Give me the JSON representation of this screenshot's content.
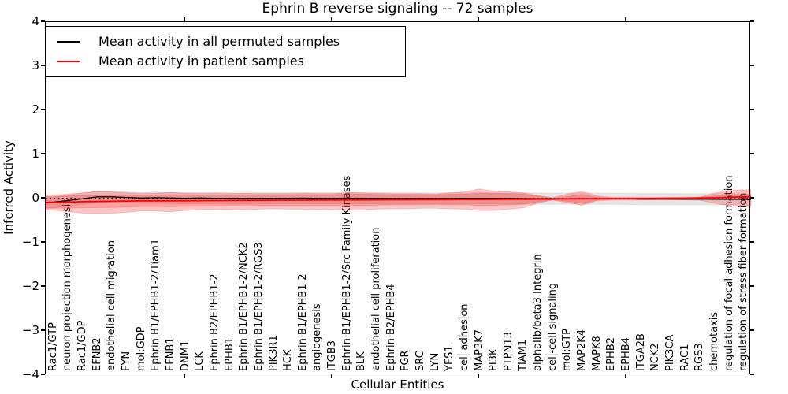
{
  "legend": {
    "position": "upper left",
    "items": [
      {
        "label": "Mean activity in all permuted samples",
        "color": "#000000"
      },
      {
        "label": "Mean activity in patient samples",
        "color": "#ff0000"
      }
    ]
  },
  "chart_data": {
    "type": "line",
    "title": "Ephrin B reverse signaling -- 72 samples",
    "xlabel": "Cellular Entities",
    "ylabel": "Inferred Activity",
    "ylim": [
      -4,
      4
    ],
    "grid": false,
    "ytick_values": [
      4,
      3,
      2,
      1,
      0,
      -1,
      -2,
      -3,
      -4
    ],
    "ytick_labels": [
      "4",
      "3",
      "2",
      "1",
      "0",
      "−1",
      "−2",
      "−3",
      "−4"
    ],
    "xtick_positions": [
      10,
      20,
      30,
      40
    ],
    "categories": [
      "Rac1/GTP",
      "neuron projection morphogenesis",
      "Rac1/GDP",
      "EFNB2",
      "endothelial cell migration",
      "FYN",
      "mol:GDP",
      "Ephrin B1/EPHB1-2/Tiam1",
      "EFNB1",
      "DNM1",
      "LCK",
      "Ephrin B2/EPHB1-2",
      "EPHB1",
      "Ephrin B1/EPHB1-2/NCK2",
      "Ephrin B1/EPHB1-2/RGS3",
      "PIK3R1",
      "HCK",
      "Ephrin B1/EPHB1-2",
      "angiogenesis",
      "ITGB3",
      "Ephrin B1/EPHB1-2/Src Family Kinases",
      "BLK",
      "endothelial cell proliferation",
      "Ephrin B2/EPHB4",
      "FGR",
      "SRC",
      "LYN",
      "YES1",
      "cell adhesion",
      "MAP3K7",
      "PI3K",
      "PTPN13",
      "TIAM1",
      "alphaIIb/beta3 Integrin",
      "cell-cell signaling",
      "mol:GTP",
      "MAP2K4",
      "MAPK8",
      "EPHB2",
      "EPHB4",
      "ITGA2B",
      "NCK2",
      "PIK3CA",
      "RAC1",
      "RGS3",
      "chemotaxis",
      "regulation of focal adhesion formation",
      "regulation of stress fiber formation"
    ],
    "zero_reference": {
      "value": 0,
      "style": "dotted",
      "color": "#000000"
    },
    "series": [
      {
        "name": "Mean activity in all permuted samples",
        "color": "#000000",
        "values": [
          -0.08,
          -0.045,
          -0.005,
          0.04,
          0.04,
          0.025,
          0.012,
          0.02,
          0.012,
          0.006,
          0.012,
          0.008,
          0.006,
          0.006,
          0.005,
          0.004,
          0.005,
          0.009,
          0.005,
          0.004,
          0.009,
          0.005,
          0.004,
          0.002,
          0.001,
          0.002,
          0.001,
          0.002,
          0.003,
          0.004,
          0.003,
          0.002,
          0.0,
          -0.002,
          -0.003,
          -0.002,
          0.0,
          -0.003,
          -0.006,
          -0.008,
          -0.01,
          -0.01,
          -0.011,
          -0.012,
          -0.012,
          -0.014,
          -0.016,
          -0.02
        ]
      },
      {
        "name": "Mean activity in patient samples",
        "color": "#ff0000",
        "values": [
          -0.09,
          -0.08,
          -0.07,
          -0.065,
          -0.06,
          -0.055,
          -0.05,
          -0.05,
          -0.05,
          -0.048,
          -0.046,
          -0.044,
          -0.042,
          -0.04,
          -0.04,
          -0.038,
          -0.036,
          -0.035,
          -0.033,
          -0.032,
          -0.03,
          -0.03,
          -0.028,
          -0.027,
          -0.026,
          -0.024,
          -0.023,
          -0.022,
          -0.02,
          -0.02,
          -0.018,
          -0.016,
          -0.014,
          -0.012,
          -0.01,
          -0.008,
          -0.005,
          -0.004,
          -0.003,
          -0.002,
          0.0,
          0.002,
          0.005,
          0.008,
          0.012,
          0.018,
          0.028,
          0.04
        ]
      }
    ],
    "bands": [
      {
        "name": "permuted-samples-band",
        "color": "#888888",
        "opacity": 0.2,
        "upper": [
          0.045,
          0.08,
          0.12,
          0.165,
          0.165,
          0.15,
          0.137,
          0.145,
          0.137,
          0.131,
          0.137,
          0.133,
          0.131,
          0.131,
          0.13,
          0.129,
          0.13,
          0.134,
          0.13,
          0.129,
          0.134,
          0.13,
          0.129,
          0.127,
          0.126,
          0.127,
          0.126,
          0.127,
          0.128,
          0.129,
          0.128,
          0.127,
          0.125,
          0.123,
          0.122,
          0.123,
          0.125,
          0.122,
          0.119,
          0.117,
          0.115,
          0.115,
          0.114,
          0.113,
          0.113,
          0.111,
          0.109,
          0.105
        ],
        "lower": [
          -0.205,
          -0.17,
          -0.13,
          -0.085,
          -0.085,
          -0.1,
          -0.113,
          -0.105,
          -0.113,
          -0.119,
          -0.113,
          -0.117,
          -0.119,
          -0.119,
          -0.12,
          -0.121,
          -0.12,
          -0.116,
          -0.12,
          -0.121,
          -0.116,
          -0.12,
          -0.121,
          -0.123,
          -0.124,
          -0.123,
          -0.124,
          -0.123,
          -0.122,
          -0.121,
          -0.122,
          -0.123,
          -0.125,
          -0.127,
          -0.128,
          -0.127,
          -0.125,
          -0.128,
          -0.131,
          -0.133,
          -0.135,
          -0.135,
          -0.136,
          -0.137,
          -0.137,
          -0.139,
          -0.141,
          -0.145
        ]
      },
      {
        "name": "patient-samples-outer-band",
        "color": "#ff0000",
        "opacity": 0.22,
        "upper": [
          0.08,
          0.1,
          0.13,
          0.16,
          0.15,
          0.13,
          0.11,
          0.12,
          0.14,
          0.12,
          0.11,
          0.12,
          0.11,
          0.12,
          0.11,
          0.11,
          0.11,
          0.12,
          0.11,
          0.11,
          0.14,
          0.13,
          0.12,
          0.11,
          0.11,
          0.11,
          0.1,
          0.13,
          0.15,
          0.22,
          0.17,
          0.15,
          0.13,
          0.07,
          0.02,
          0.1,
          0.16,
          0.06,
          0.025,
          0.025,
          0.025,
          0.025,
          0.025,
          0.025,
          0.03,
          0.12,
          0.18,
          0.2
        ],
        "lower": [
          -0.26,
          -0.29,
          -0.33,
          -0.34,
          -0.33,
          -0.31,
          -0.28,
          -0.28,
          -0.3,
          -0.27,
          -0.25,
          -0.25,
          -0.24,
          -0.25,
          -0.24,
          -0.23,
          -0.24,
          -0.24,
          -0.25,
          -0.24,
          -0.26,
          -0.26,
          -0.24,
          -0.23,
          -0.23,
          -0.22,
          -0.22,
          -0.23,
          -0.24,
          -0.27,
          -0.27,
          -0.24,
          -0.21,
          -0.1,
          -0.03,
          -0.09,
          -0.15,
          -0.05,
          -0.03,
          -0.03,
          -0.03,
          -0.03,
          -0.03,
          -0.03,
          -0.035,
          -0.1,
          -0.16,
          -0.18
        ]
      },
      {
        "name": "patient-samples-inner-band",
        "color": "#ff0000",
        "opacity": 0.2,
        "upper": [
          0.04,
          0.055,
          0.07,
          0.075,
          0.08,
          0.08,
          0.08,
          0.08,
          0.085,
          0.082,
          0.079,
          0.081,
          0.078,
          0.085,
          0.08,
          0.082,
          0.084,
          0.085,
          0.087,
          0.088,
          0.1,
          0.1,
          0.092,
          0.088,
          0.084,
          0.086,
          0.087,
          0.093,
          0.1,
          0.12,
          0.117,
          0.109,
          0.101,
          0.048,
          0.005,
          0.042,
          0.095,
          0.026,
          0.012,
          0.013,
          0.015,
          0.017,
          0.02,
          0.023,
          0.032,
          0.058,
          0.078,
          0.09
        ],
        "lower": [
          -0.22,
          -0.215,
          -0.21,
          -0.205,
          -0.2,
          -0.19,
          -0.18,
          -0.18,
          -0.185,
          -0.178,
          -0.171,
          -0.169,
          -0.162,
          -0.165,
          -0.16,
          -0.158,
          -0.156,
          -0.155,
          -0.153,
          -0.152,
          -0.16,
          -0.16,
          -0.148,
          -0.142,
          -0.136,
          -0.134,
          -0.133,
          -0.137,
          -0.14,
          -0.16,
          -0.153,
          -0.141,
          -0.129,
          -0.072,
          -0.025,
          -0.058,
          -0.105,
          -0.034,
          -0.018,
          -0.017,
          -0.015,
          -0.013,
          -0.01,
          -0.007,
          -0.008,
          -0.022,
          -0.022,
          -0.01
        ]
      }
    ]
  }
}
